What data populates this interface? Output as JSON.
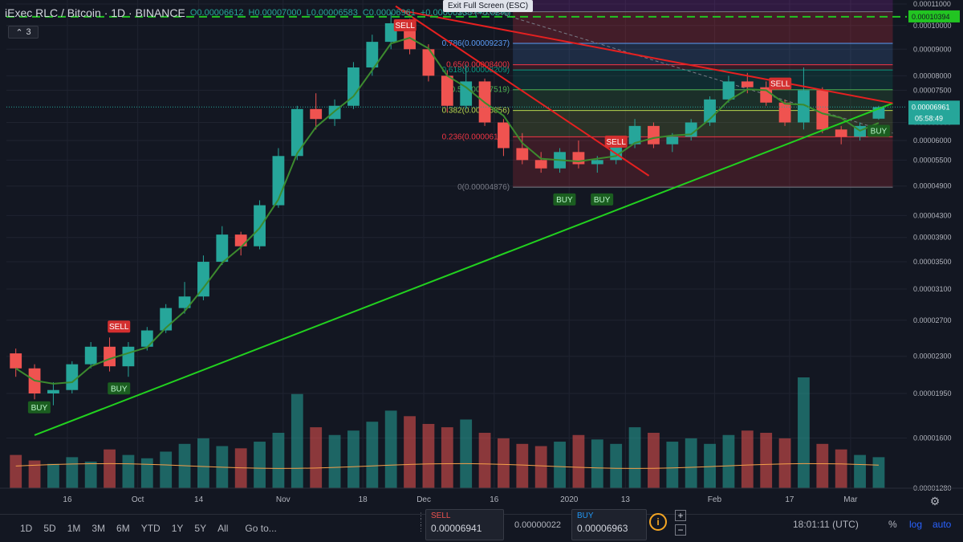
{
  "header": {
    "symbol": "iExec RLC / Bitcoin · 1D · BINANCE",
    "open": "O0.00006612",
    "high": "H0.00007000",
    "low": "L0.00006583",
    "close": "C0.00006961",
    "change": "+0.00000333 (+5.02%)"
  },
  "indicator_toggle": {
    "icon": "chevron-down-icon",
    "count": "3"
  },
  "fullscreen_tip": "Exit Full Screen (ESC)",
  "toolbar": {
    "ranges": [
      "1D",
      "5D",
      "1M",
      "3M",
      "6M",
      "YTD",
      "1Y",
      "5Y",
      "All"
    ],
    "goto": "Go to...",
    "sell_label": "SELL",
    "sell_price": "0.00006941",
    "spread": "0.00000022",
    "buy_label": "BUY",
    "buy_price": "0.00006963",
    "time": "18:01:11 (UTC)",
    "percent": "%",
    "log": "log",
    "auto": "auto"
  },
  "colors": {
    "background": "#131722",
    "up": "#26a69a",
    "down": "#ef5350",
    "trendline_green": "#22d11f",
    "trendline_red": "#e52020",
    "horizontal_dashed": "#22c422"
  },
  "chart_data": {
    "type": "candlestick",
    "y_scale": "log",
    "y_ticks": [
      "0.00011000",
      "0.00010000",
      "0.00009000",
      "0.00008000",
      "0.00007500",
      "0.00006500",
      "0.00006000",
      "0.00005500",
      "0.00004900",
      "0.00004300",
      "0.00003900",
      "0.00003500",
      "0.00003100",
      "0.00002700",
      "0.00002300",
      "0.00001950",
      "0.00001600",
      "0.00001280"
    ],
    "y_tick_values": [
      0.00011,
      0.0001,
      9e-05,
      8e-05,
      7.5e-05,
      6.5e-05,
      6e-05,
      5.5e-05,
      4.9e-05,
      4.3e-05,
      3.9e-05,
      3.5e-05,
      3.1e-05,
      2.7e-05,
      2.3e-05,
      1.95e-05,
      1.6e-05,
      1.28e-05
    ],
    "x_ticks": [
      "16",
      "Oct",
      "14",
      "Nov",
      "18",
      "Dec",
      "16",
      "2020",
      "13",
      "Feb",
      "17",
      "Mar"
    ],
    "x_tick_dates": [
      "2019-09-16",
      "2019-10-01",
      "2019-10-14",
      "2019-11-01",
      "2019-11-18",
      "2019-12-01",
      "2019-12-16",
      "2020-01-01",
      "2020-01-13",
      "2020-02-01",
      "2020-02-17",
      "2020-03-01"
    ],
    "date_range": [
      "2019-09-05",
      "2020-03-07"
    ],
    "price_range": [
      1.28e-05,
      0.000112
    ],
    "last_price": 6.961e-05,
    "last_price_label": "0.00006961",
    "countdown_label": "05:58:49",
    "horizontal_line": {
      "value": 0.00010394,
      "label": "0.00010394"
    },
    "candles": [
      {
        "d": "2019-09-05",
        "o": 2.33e-05,
        "h": 2.38e-05,
        "l": 2.1e-05,
        "c": 2.18e-05
      },
      {
        "d": "2019-09-09",
        "o": 2.18e-05,
        "h": 2.22e-05,
        "l": 1.9e-05,
        "c": 1.95e-05
      },
      {
        "d": "2019-09-13",
        "o": 1.95e-05,
        "h": 2.05e-05,
        "l": 1.85e-05,
        "c": 1.98e-05
      },
      {
        "d": "2019-09-17",
        "o": 1.98e-05,
        "h": 2.25e-05,
        "l": 1.95e-05,
        "c": 2.22e-05
      },
      {
        "d": "2019-09-21",
        "o": 2.22e-05,
        "h": 2.45e-05,
        "l": 2.18e-05,
        "c": 2.4e-05
      },
      {
        "d": "2019-09-25",
        "o": 2.4e-05,
        "h": 2.5e-05,
        "l": 2.15e-05,
        "c": 2.2e-05
      },
      {
        "d": "2019-09-29",
        "o": 2.2e-05,
        "h": 2.45e-05,
        "l": 2.1e-05,
        "c": 2.4e-05
      },
      {
        "d": "2019-10-03",
        "o": 2.4e-05,
        "h": 2.62e-05,
        "l": 2.36e-05,
        "c": 2.58e-05
      },
      {
        "d": "2019-10-07",
        "o": 2.58e-05,
        "h": 2.9e-05,
        "l": 2.55e-05,
        "c": 2.85e-05
      },
      {
        "d": "2019-10-11",
        "o": 2.85e-05,
        "h": 3.2e-05,
        "l": 2.78e-05,
        "c": 3e-05
      },
      {
        "d": "2019-10-15",
        "o": 3e-05,
        "h": 3.6e-05,
        "l": 2.95e-05,
        "c": 3.5e-05
      },
      {
        "d": "2019-10-19",
        "o": 3.5e-05,
        "h": 4.1e-05,
        "l": 3.45e-05,
        "c": 3.95e-05
      },
      {
        "d": "2019-10-23",
        "o": 3.95e-05,
        "h": 4e-05,
        "l": 3.6e-05,
        "c": 3.75e-05
      },
      {
        "d": "2019-10-27",
        "o": 3.75e-05,
        "h": 4.6e-05,
        "l": 3.7e-05,
        "c": 4.5e-05
      },
      {
        "d": "2019-10-31",
        "o": 4.5e-05,
        "h": 5.8e-05,
        "l": 4.45e-05,
        "c": 5.6e-05
      },
      {
        "d": "2019-11-04",
        "o": 5.6e-05,
        "h": 7e-05,
        "l": 5.5e-05,
        "c": 6.9e-05
      },
      {
        "d": "2019-11-08",
        "o": 6.9e-05,
        "h": 7.4e-05,
        "l": 6.3e-05,
        "c": 6.6e-05
      },
      {
        "d": "2019-11-12",
        "o": 6.6e-05,
        "h": 7.2e-05,
        "l": 6.4e-05,
        "c": 7e-05
      },
      {
        "d": "2019-11-16",
        "o": 7e-05,
        "h": 8.5e-05,
        "l": 6.9e-05,
        "c": 8.3e-05
      },
      {
        "d": "2019-11-20",
        "o": 8.3e-05,
        "h": 9.6e-05,
        "l": 8e-05,
        "c": 9.3e-05
      },
      {
        "d": "2019-11-24",
        "o": 9.3e-05,
        "h": 0.000106,
        "l": 9e-05,
        "c": 0.000101
      },
      {
        "d": "2019-11-28",
        "o": 0.000101,
        "h": 0.000103,
        "l": 8.8e-05,
        "c": 9e-05
      },
      {
        "d": "2019-12-02",
        "o": 9e-05,
        "h": 9.2e-05,
        "l": 7.8e-05,
        "c": 8e-05
      },
      {
        "d": "2019-12-06",
        "o": 8e-05,
        "h": 8.2e-05,
        "l": 6.8e-05,
        "c": 7e-05
      },
      {
        "d": "2019-12-10",
        "o": 7e-05,
        "h": 8.4e-05,
        "l": 6.9e-05,
        "c": 7.8e-05
      },
      {
        "d": "2019-12-14",
        "o": 7.8e-05,
        "h": 7.9e-05,
        "l": 6.4e-05,
        "c": 6.5e-05
      },
      {
        "d": "2019-12-18",
        "o": 6.5e-05,
        "h": 6.6e-05,
        "l": 5.6e-05,
        "c": 5.8e-05
      },
      {
        "d": "2019-12-22",
        "o": 5.8e-05,
        "h": 6.2e-05,
        "l": 5.4e-05,
        "c": 5.5e-05
      },
      {
        "d": "2019-12-26",
        "o": 5.5e-05,
        "h": 5.7e-05,
        "l": 5.2e-05,
        "c": 5.3e-05
      },
      {
        "d": "2019-12-30",
        "o": 5.3e-05,
        "h": 5.8e-05,
        "l": 5.2e-05,
        "c": 5.7e-05
      },
      {
        "d": "2020-01-03",
        "o": 5.7e-05,
        "h": 6e-05,
        "l": 5.3e-05,
        "c": 5.4e-05
      },
      {
        "d": "2020-01-07",
        "o": 5.4e-05,
        "h": 5.6e-05,
        "l": 5.2e-05,
        "c": 5.5e-05
      },
      {
        "d": "2020-01-11",
        "o": 5.5e-05,
        "h": 6e-05,
        "l": 5.4e-05,
        "c": 5.9e-05
      },
      {
        "d": "2020-01-15",
        "o": 5.9e-05,
        "h": 6.6e-05,
        "l": 5.8e-05,
        "c": 6.4e-05
      },
      {
        "d": "2020-01-19",
        "o": 6.4e-05,
        "h": 6.5e-05,
        "l": 5.8e-05,
        "c": 5.9e-05
      },
      {
        "d": "2020-01-23",
        "o": 5.9e-05,
        "h": 6.2e-05,
        "l": 5.7e-05,
        "c": 6.1e-05
      },
      {
        "d": "2020-01-27",
        "o": 6.1e-05,
        "h": 6.6e-05,
        "l": 6e-05,
        "c": 6.5e-05
      },
      {
        "d": "2020-01-31",
        "o": 6.5e-05,
        "h": 7.3e-05,
        "l": 6.4e-05,
        "c": 7.2e-05
      },
      {
        "d": "2020-02-04",
        "o": 7.2e-05,
        "h": 8e-05,
        "l": 7.1e-05,
        "c": 7.8e-05
      },
      {
        "d": "2020-02-08",
        "o": 7.8e-05,
        "h": 8.1e-05,
        "l": 7.4e-05,
        "c": 7.6e-05
      },
      {
        "d": "2020-02-12",
        "o": 7.6e-05,
        "h": 7.8e-05,
        "l": 7e-05,
        "c": 7.1e-05
      },
      {
        "d": "2020-02-16",
        "o": 7.1e-05,
        "h": 7.2e-05,
        "l": 6.4e-05,
        "c": 6.5e-05
      },
      {
        "d": "2020-02-20",
        "o": 6.5e-05,
        "h": 8.3e-05,
        "l": 6.3e-05,
        "c": 7.5e-05
      },
      {
        "d": "2020-02-24",
        "o": 7.5e-05,
        "h": 7.6e-05,
        "l": 6.2e-05,
        "c": 6.3e-05
      },
      {
        "d": "2020-02-28",
        "o": 6.3e-05,
        "h": 6.4e-05,
        "l": 5.9e-05,
        "c": 6.1e-05
      },
      {
        "d": "2020-03-03",
        "o": 6.1e-05,
        "h": 6.5e-05,
        "l": 6e-05,
        "c": 6.4e-05
      },
      {
        "d": "2020-03-07",
        "o": 6.61e-05,
        "h": 7e-05,
        "l": 6.58e-05,
        "c": 6.96e-05
      }
    ],
    "volume": [
      0.3,
      0.25,
      0.22,
      0.28,
      0.24,
      0.35,
      0.3,
      0.27,
      0.33,
      0.4,
      0.45,
      0.38,
      0.36,
      0.42,
      0.5,
      0.85,
      0.55,
      0.48,
      0.52,
      0.6,
      0.7,
      0.65,
      0.58,
      0.55,
      0.62,
      0.5,
      0.45,
      0.4,
      0.38,
      0.42,
      0.48,
      0.44,
      0.4,
      0.55,
      0.5,
      0.42,
      0.45,
      0.4,
      0.48,
      0.52,
      0.5,
      0.45,
      1.0,
      0.4,
      0.35,
      0.3,
      0.28
    ],
    "fib_levels": [
      {
        "ratio": "0",
        "value": 4.876e-05,
        "label": "0(0.00004876)",
        "color": "#787b86"
      },
      {
        "ratio": "0.236",
        "value": 6.1e-05,
        "label": "0.236(0.00006100)",
        "color": "#f23645"
      },
      {
        "ratio": "0.382",
        "value": 6.856e-05,
        "label": "0.382(0.00006856)",
        "color": "#b8d64e"
      },
      {
        "ratio": "0.5",
        "value": 7.519e-05,
        "label": "0.5(0.00007519)",
        "color": "#4caf50"
      },
      {
        "ratio": "0.618",
        "value": 8.209e-05,
        "label": "0.618(0.00008209)",
        "color": "#089981"
      },
      {
        "ratio": "0.65",
        "value": 8.4e-05,
        "label": "0.65(0.00008400)",
        "color": "#f23645"
      },
      {
        "ratio": "0.786",
        "value": 9.237e-05,
        "label": "0.786(0.00009237)",
        "color": "#5b9cf6"
      },
      {
        "ratio": "1",
        "value": 0.00010632,
        "label": "1(0.00010632)",
        "color": "#787b86"
      }
    ],
    "fib_range": {
      "start": "2019-12-20",
      "end": "2020-03-10"
    },
    "trendlines": [
      {
        "name": "support",
        "color": "#22d11f",
        "from": [
          "2019-09-09",
          1.62e-05
        ],
        "to": [
          "2020-03-10",
          7.08e-05
        ]
      },
      {
        "name": "resistance-long",
        "color": "#e52020",
        "from": [
          "2019-11-26",
          0.000107
        ],
        "to": [
          "2020-03-10",
          7.08e-05
        ]
      },
      {
        "name": "resistance-short",
        "color": "#e52020",
        "from": [
          "2019-11-25",
          0.000109
        ],
        "to": [
          "2020-01-18",
          5.13e-05
        ]
      }
    ],
    "signals": [
      {
        "type": "SELL",
        "d": "2019-09-27",
        "price": 2.62e-05
      },
      {
        "type": "BUY",
        "d": "2019-09-10",
        "price": 1.83e-05
      },
      {
        "type": "BUY",
        "d": "2019-09-27",
        "price": 1.99e-05
      },
      {
        "type": "SELL",
        "d": "2019-11-27",
        "price": 9.99e-05
      },
      {
        "type": "SELL",
        "d": "2020-01-11",
        "price": 5.96e-05
      },
      {
        "type": "BUY",
        "d": "2019-12-31",
        "price": 4.61e-05
      },
      {
        "type": "BUY",
        "d": "2020-01-08",
        "price": 4.61e-05
      },
      {
        "type": "SELL",
        "d": "2020-02-15",
        "price": 7.71e-05
      },
      {
        "type": "BUY",
        "d": "2020-03-07",
        "price": 6.25e-05
      }
    ]
  }
}
